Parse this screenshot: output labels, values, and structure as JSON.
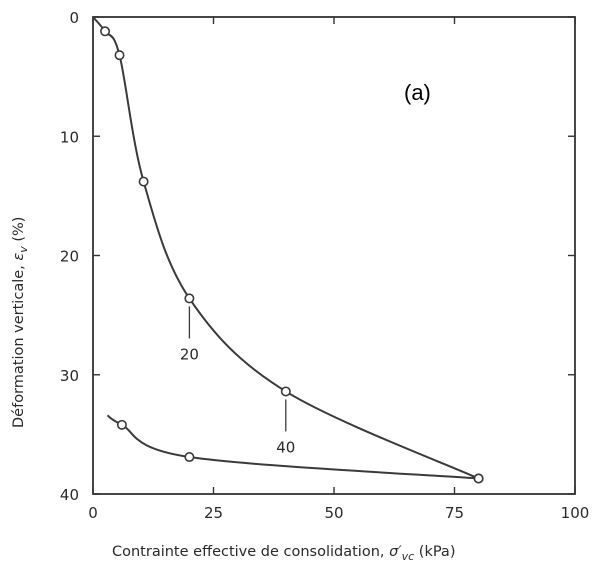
{
  "chart_data": {
    "type": "line",
    "panel_label": "(a)",
    "xlabel_prefix": "Contrainte effective de consolidation, ",
    "xlabel_symbol": "σ′",
    "xlabel_subscript": "vc",
    "xlabel_suffix": " (kPa)",
    "ylabel_prefix": "Déformation verticale, ",
    "ylabel_symbol": "ε",
    "ylabel_subscript": "v",
    "ylabel_suffix": " (%)",
    "xlim": [
      0,
      100
    ],
    "ylim": [
      0,
      40
    ],
    "y_inverted": true,
    "grid": false,
    "xticks": [
      0,
      25,
      50,
      75,
      100
    ],
    "yticks": [
      0,
      10,
      20,
      30,
      40
    ],
    "series": [
      {
        "points": [
          [
            2.5,
            1.2
          ],
          [
            5.5,
            3.2
          ],
          [
            10.5,
            13.8
          ],
          [
            20,
            23.6
          ],
          [
            40,
            31.4
          ],
          [
            80,
            38.7
          ]
        ],
        "markers": true
      },
      {
        "points": [
          [
            6,
            34.2
          ],
          [
            20,
            36.9
          ],
          [
            80,
            38.7
          ]
        ],
        "markers": true
      }
    ],
    "annotations": [
      {
        "text": "20",
        "x": 20,
        "y": 23.6
      },
      {
        "text": "40",
        "x": 40,
        "y": 31.4
      }
    ]
  }
}
